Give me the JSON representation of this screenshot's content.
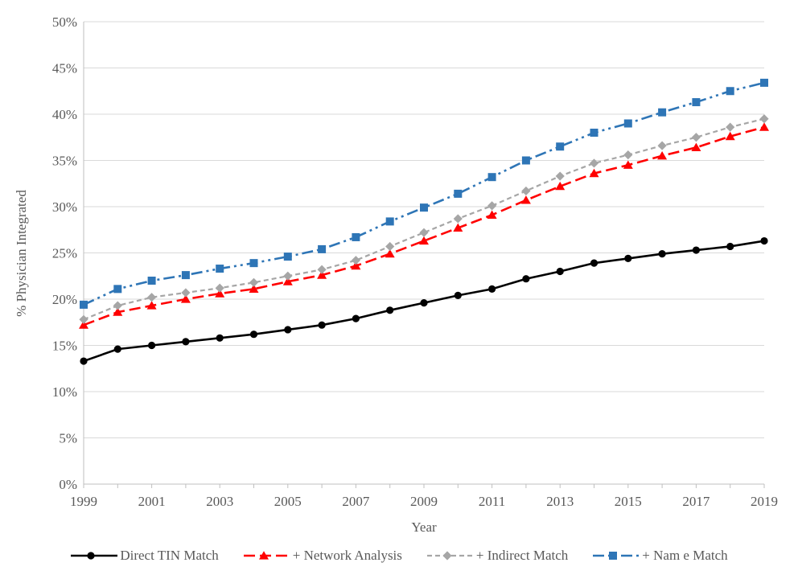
{
  "chart_data": {
    "type": "line",
    "title": "",
    "xlabel": "Year",
    "ylabel": "% Physician Integrated",
    "x": [
      1999,
      2000,
      2001,
      2002,
      2003,
      2004,
      2005,
      2006,
      2007,
      2008,
      2009,
      2010,
      2011,
      2012,
      2013,
      2014,
      2015,
      2016,
      2017,
      2018,
      2019
    ],
    "x_tick_labels": [
      "1999",
      "2001",
      "2003",
      "2005",
      "2007",
      "2009",
      "2011",
      "2013",
      "2015",
      "2017",
      "2019"
    ],
    "y_tick_labels": [
      "0%",
      "5%",
      "10%",
      "15%",
      "20%",
      "25%",
      "30%",
      "35%",
      "40%",
      "45%",
      "50%"
    ],
    "ylim": [
      0,
      50
    ],
    "y_tick_step": 5,
    "grid": "horizontal",
    "legend_position": "bottom",
    "series": [
      {
        "name": "Direct TIN Match",
        "color": "#000000",
        "line_style": "solid",
        "marker": "circle",
        "values": [
          13.3,
          14.6,
          15.0,
          15.4,
          15.8,
          16.2,
          16.7,
          17.2,
          17.9,
          18.8,
          19.6,
          20.4,
          21.1,
          22.2,
          23.0,
          23.9,
          24.4,
          24.9,
          25.3,
          25.7,
          26.3
        ]
      },
      {
        "name": "+ Network Analysis",
        "color": "#FF0000",
        "line_style": "long-dash",
        "marker": "triangle",
        "values": [
          17.2,
          18.6,
          19.3,
          20.0,
          20.6,
          21.1,
          21.9,
          22.6,
          23.6,
          24.9,
          26.3,
          27.7,
          29.1,
          30.7,
          32.2,
          33.6,
          34.5,
          35.5,
          36.4,
          37.6,
          38.6
        ]
      },
      {
        "name": "+ Indirect Match",
        "color": "#A6A6A6",
        "line_style": "dash",
        "marker": "diamond",
        "values": [
          17.8,
          19.3,
          20.2,
          20.7,
          21.2,
          21.8,
          22.5,
          23.2,
          24.2,
          25.7,
          27.2,
          28.7,
          30.1,
          31.7,
          33.3,
          34.7,
          35.6,
          36.6,
          37.5,
          38.6,
          39.5
        ]
      },
      {
        "name": "+ Nam e Match",
        "color": "#2E75B6",
        "line_style": "dash-dot-dot",
        "marker": "square",
        "values": [
          19.4,
          21.1,
          22.0,
          22.6,
          23.3,
          23.9,
          24.6,
          25.4,
          26.7,
          28.4,
          29.9,
          31.4,
          33.2,
          35.0,
          36.5,
          38.0,
          39.0,
          40.2,
          41.3,
          42.5,
          43.4
        ]
      }
    ]
  },
  "colors": {
    "gridline": "#D9D9D9",
    "axis": "#BFBFBF",
    "tick_text": "#595959",
    "legend_text": "#595959"
  }
}
